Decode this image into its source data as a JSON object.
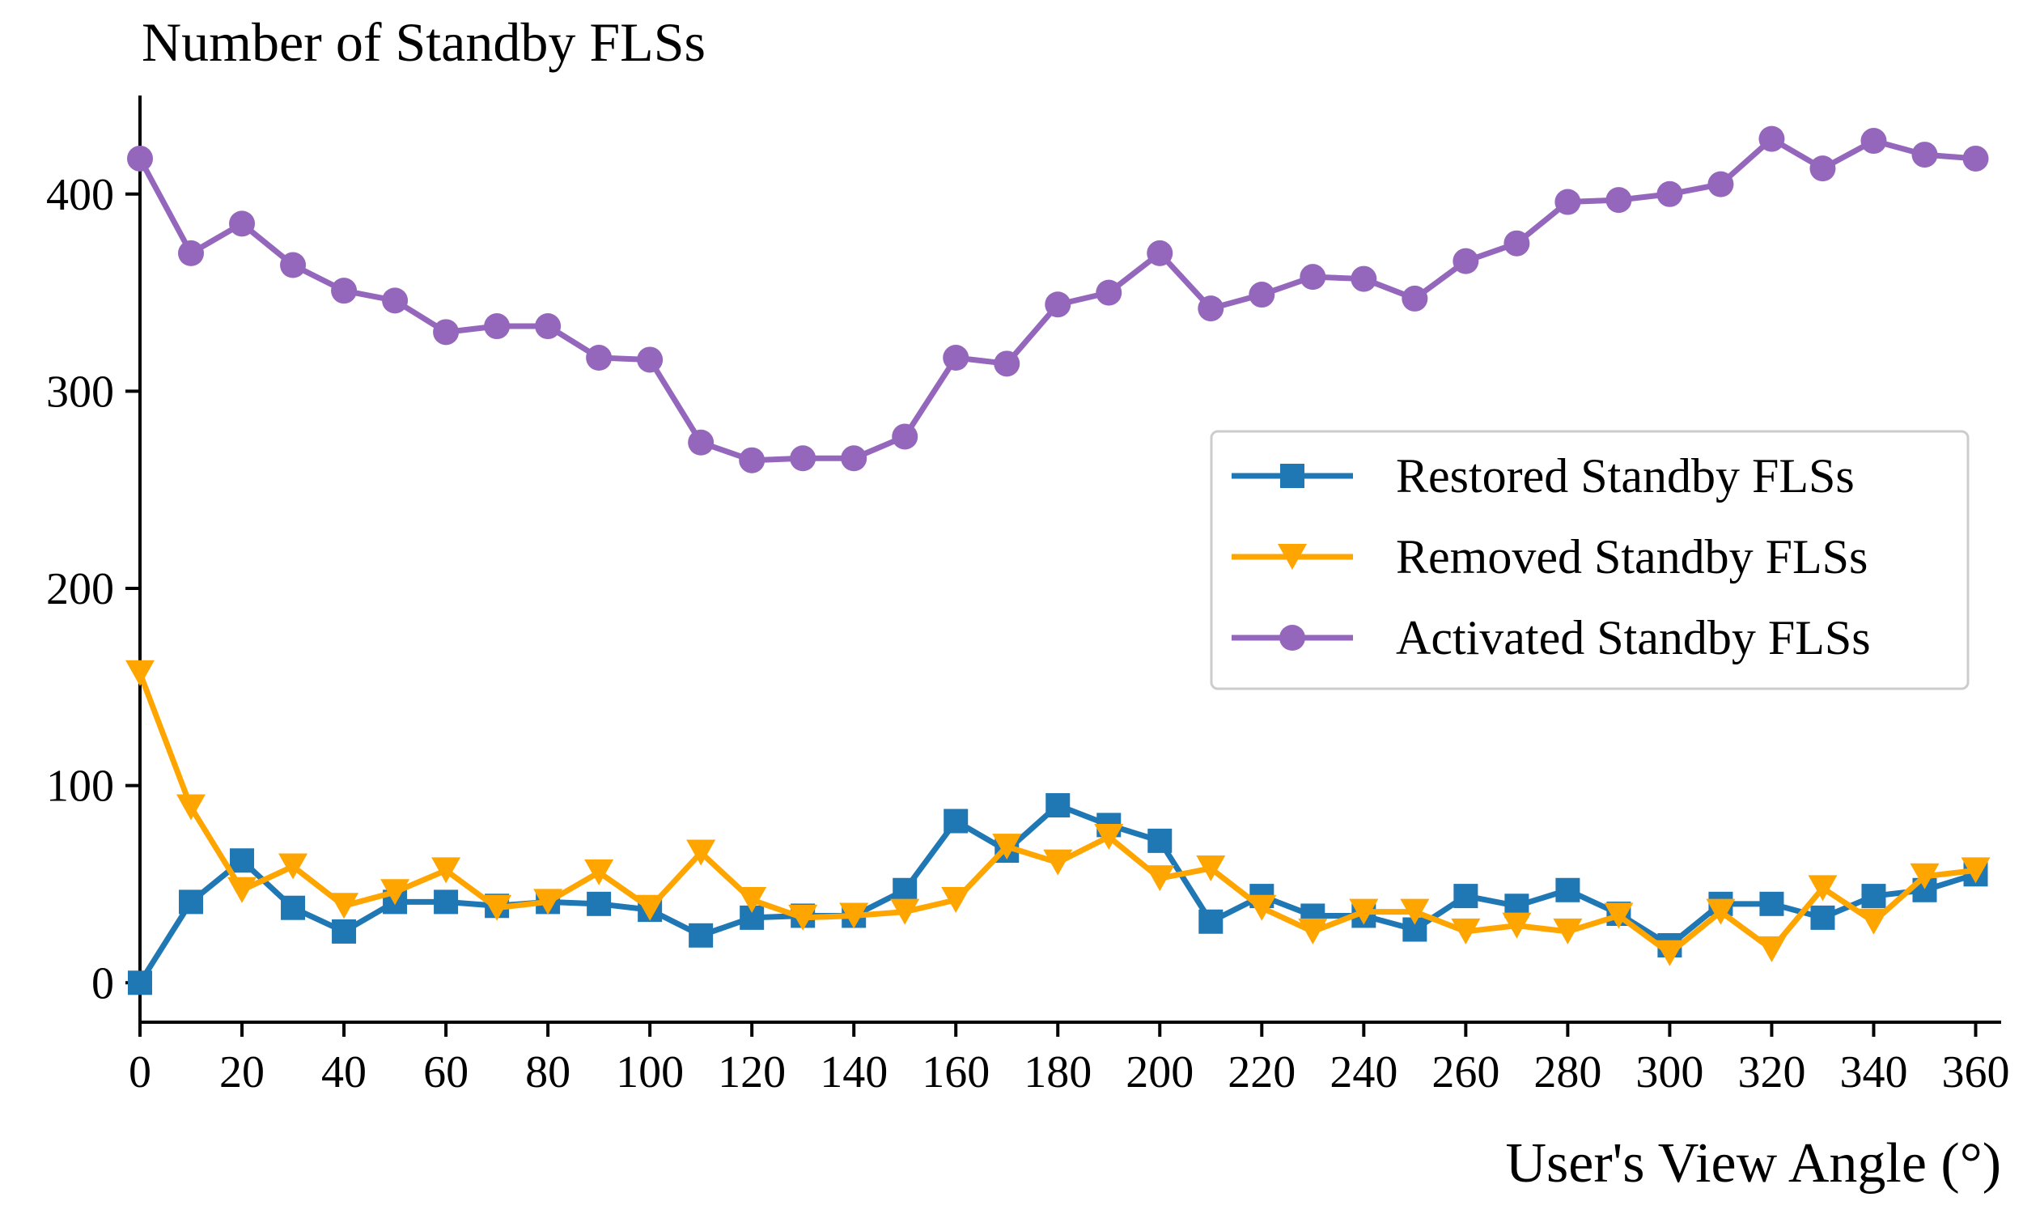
{
  "chart_data": {
    "type": "line",
    "title": "Number of Standby FLSs",
    "xlabel": "User's View Angle (°)",
    "ylabel": "",
    "xlim": [
      0,
      365
    ],
    "ylim": [
      -20,
      450
    ],
    "xticks": [
      0,
      20,
      40,
      60,
      80,
      100,
      120,
      140,
      160,
      180,
      200,
      220,
      240,
      260,
      280,
      300,
      320,
      340,
      360
    ],
    "yticks": [
      0,
      100,
      200,
      300,
      400
    ],
    "grid": false,
    "legend_position": "center-right",
    "x": [
      0,
      10,
      20,
      30,
      40,
      50,
      60,
      70,
      80,
      90,
      100,
      110,
      120,
      130,
      140,
      150,
      160,
      170,
      180,
      190,
      200,
      210,
      220,
      230,
      240,
      250,
      260,
      270,
      280,
      290,
      300,
      310,
      320,
      330,
      340,
      350,
      360
    ],
    "series": [
      {
        "name": "Restored Standby FLSs",
        "color": "#1f77b4",
        "marker": "square",
        "values": [
          0,
          41,
          62,
          38,
          26,
          41,
          41,
          39,
          41,
          40,
          37,
          24,
          33,
          34,
          34,
          47,
          82,
          67,
          90,
          80,
          72,
          31,
          44,
          34,
          34,
          27,
          44,
          39,
          47,
          35,
          19,
          40,
          40,
          33,
          44,
          47,
          55
        ]
      },
      {
        "name": "Removed Standby FLSs",
        "color": "#ffa500",
        "marker": "triangle-down",
        "values": [
          157,
          89,
          47,
          59,
          39,
          46,
          57,
          38,
          41,
          56,
          38,
          66,
          42,
          33,
          34,
          36,
          42,
          69,
          61,
          74,
          53,
          58,
          38,
          26,
          36,
          36,
          26,
          29,
          26,
          34,
          15,
          36,
          17,
          48,
          31,
          54,
          57
        ]
      },
      {
        "name": "Activated Standby FLSs",
        "color": "#9467bd",
        "marker": "circle",
        "values": [
          418,
          370,
          385,
          364,
          351,
          346,
          330,
          333,
          333,
          317,
          316,
          274,
          265,
          266,
          266,
          277,
          317,
          314,
          344,
          350,
          370,
          342,
          349,
          358,
          357,
          347,
          366,
          375,
          396,
          397,
          400,
          405,
          428,
          413,
          427,
          420,
          418
        ]
      }
    ]
  }
}
